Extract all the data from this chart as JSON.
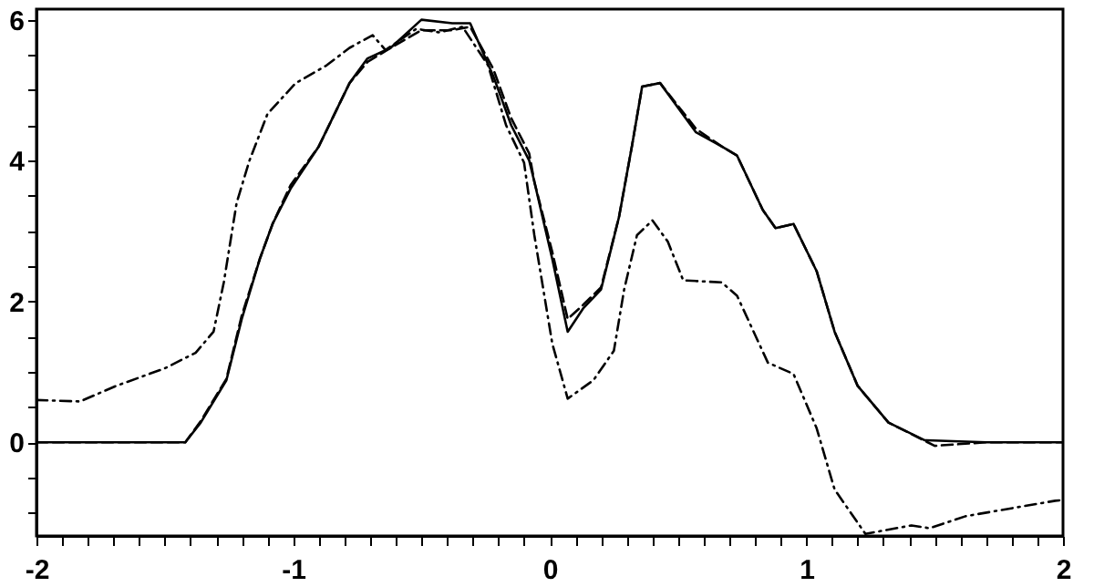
{
  "chart_data": {
    "type": "line",
    "xlim": [
      -2,
      2
    ],
    "ylim": [
      -1.33,
      6.15
    ],
    "xticks": [
      -2,
      {
        "value": -1.9,
        "label": null
      },
      {
        "value": -1.8,
        "label": null
      },
      {
        "value": -1.7,
        "label": null
      },
      {
        "value": -1.6,
        "label": null
      },
      {
        "value": -1.5,
        "label": null
      },
      {
        "value": -1.4,
        "label": null
      },
      {
        "value": -1.3,
        "label": null
      },
      {
        "value": -1.2,
        "label": null
      },
      {
        "value": -1.1,
        "label": null
      },
      -1,
      {
        "value": -0.9,
        "label": null
      },
      {
        "value": -0.8,
        "label": null
      },
      {
        "value": -0.7,
        "label": null
      },
      {
        "value": -0.6,
        "label": null
      },
      {
        "value": -0.5,
        "label": null
      },
      {
        "value": -0.4,
        "label": null
      },
      {
        "value": -0.3,
        "label": null
      },
      {
        "value": -0.2,
        "label": null
      },
      {
        "value": -0.1,
        "label": null
      },
      0,
      {
        "value": 0.1,
        "label": null
      },
      {
        "value": 0.2,
        "label": null
      },
      {
        "value": 0.3,
        "label": null
      },
      {
        "value": 0.4,
        "label": null
      },
      {
        "value": 0.5,
        "label": null
      },
      {
        "value": 0.6,
        "label": null
      },
      {
        "value": 0.7,
        "label": null
      },
      {
        "value": 0.8,
        "label": null
      },
      {
        "value": 0.9,
        "label": null
      },
      1,
      {
        "value": 1.1,
        "label": null
      },
      {
        "value": 1.2,
        "label": null
      },
      {
        "value": 1.3,
        "label": null
      },
      {
        "value": 1.4,
        "label": null
      },
      {
        "value": 1.5,
        "label": null
      },
      {
        "value": 1.6,
        "label": null
      },
      {
        "value": 1.7,
        "label": null
      },
      {
        "value": 1.8,
        "label": null
      },
      {
        "value": 1.9,
        "label": null
      },
      2
    ],
    "yticks": [
      {
        "value": -1,
        "label": null
      },
      {
        "value": -0.5,
        "label": null
      },
      0,
      {
        "value": 0.5,
        "label": null
      },
      {
        "value": 1,
        "label": null
      },
      {
        "value": 1.5,
        "label": null
      },
      2,
      {
        "value": 2.5,
        "label": null
      },
      {
        "value": 3,
        "label": null
      },
      {
        "value": 3.5,
        "label": null
      },
      4,
      {
        "value": 4.5,
        "label": null
      },
      {
        "value": 5,
        "label": null
      },
      {
        "value": 5.5,
        "label": null
      },
      6
    ],
    "grid": false,
    "series": [
      {
        "color": "#000000",
        "line_style": "solid",
        "x": [
          -2,
          -1.6,
          -1.42,
          -1.36,
          -1.26,
          -1.2,
          -1.13,
          -1.08,
          -1.01,
          -0.9,
          -0.78,
          -0.71,
          -0.62,
          -0.5,
          -0.38,
          -0.31,
          -0.22,
          -0.15,
          -0.08,
          -0.06,
          0.01,
          0.07,
          0.13,
          0.2,
          0.27,
          0.32,
          0.36,
          0.43,
          0.57,
          0.67,
          0.73,
          0.83,
          0.88,
          0.95,
          1.04,
          1.11,
          1.2,
          1.32,
          1.46,
          1.7,
          2
        ],
        "values": [
          0,
          0,
          0,
          0.28,
          0.88,
          1.75,
          2.6,
          3.1,
          3.6,
          4.2,
          5.1,
          5.45,
          5.6,
          6,
          5.95,
          5.95,
          5.2,
          4.5,
          4,
          3.7,
          2.6,
          1.57,
          1.9,
          2.17,
          3.2,
          4.2,
          5.05,
          5.1,
          4.4,
          4.2,
          4.07,
          3.3,
          3.04,
          3.1,
          2.43,
          1.57,
          0.8,
          0.28,
          0.03,
          0,
          0
        ]
      },
      {
        "color": "#000000",
        "line_style": "dashed",
        "x": [
          -2,
          -1.6,
          -1.42,
          -1.36,
          -1.26,
          -1.2,
          -1.13,
          -1.08,
          -1.01,
          -0.9,
          -0.78,
          -0.71,
          -0.62,
          -0.5,
          -0.38,
          -0.31,
          -0.22,
          -0.15,
          -0.08,
          -0.06,
          0.01,
          0.07,
          0.13,
          0.2,
          0.27,
          0.32,
          0.36,
          0.43,
          0.57,
          0.67,
          0.73,
          0.83,
          0.88,
          0.95,
          1.04,
          1.11,
          1.2,
          1.32,
          1.5,
          1.7,
          2
        ],
        "values": [
          0,
          0,
          0,
          0.3,
          0.9,
          1.8,
          2.6,
          3.1,
          3.65,
          4.2,
          5.1,
          5.4,
          5.6,
          5.85,
          5.85,
          5.9,
          5.3,
          4.6,
          4.1,
          3.7,
          2.7,
          1.75,
          1.95,
          2.2,
          3.2,
          4.2,
          5.05,
          5.1,
          4.45,
          4.2,
          4.07,
          3.3,
          3.04,
          3.1,
          2.43,
          1.57,
          0.8,
          0.28,
          -0.05,
          0,
          0
        ]
      },
      {
        "color": "#000000",
        "line_style": "dashdot",
        "x": [
          -2,
          -1.83,
          -1.69,
          -1.5,
          -1.38,
          -1.31,
          -1.27,
          -1.22,
          -1.17,
          -1.1,
          -0.99,
          -0.87,
          -0.78,
          -0.69,
          -0.64,
          -0.52,
          -0.43,
          -0.34,
          -0.24,
          -0.17,
          -0.1,
          -0.06,
          0.01,
          0.07,
          0.17,
          0.25,
          0.29,
          0.34,
          0.4,
          0.46,
          0.52,
          0.67,
          0.73,
          0.85,
          0.95,
          1.04,
          1.11,
          1.23,
          1.29,
          1.41,
          1.48,
          1.62,
          1.81,
          1.97,
          2
        ],
        "values": [
          0.6,
          0.58,
          0.8,
          1.05,
          1.27,
          1.57,
          2.27,
          3.4,
          4,
          4.66,
          5.1,
          5.35,
          5.6,
          5.78,
          5.57,
          5.87,
          5.82,
          5.9,
          5.35,
          4.5,
          3.97,
          2.94,
          1.4,
          0.62,
          0.88,
          1.3,
          2.17,
          2.94,
          3.15,
          2.85,
          2.3,
          2.27,
          2.08,
          1.13,
          0.97,
          0.2,
          -0.67,
          -1.3,
          -1.26,
          -1.18,
          -1.22,
          -1.05,
          -0.93,
          -0.83,
          -0.82
        ]
      }
    ]
  }
}
